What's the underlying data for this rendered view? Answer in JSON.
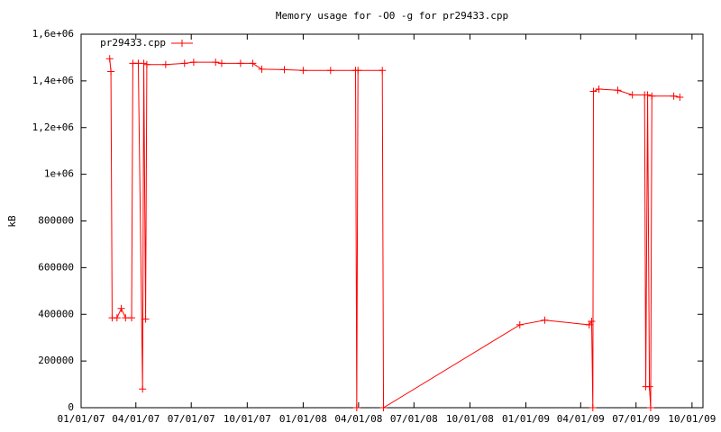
{
  "chart_data": {
    "type": "line",
    "title": "Memory usage for -O0 -g for pr29433.cpp",
    "y_label": "kB",
    "legend": "top-left",
    "series": [
      {
        "name": "pr29433.cpp",
        "color": "#ff0000",
        "x": [
          "2007-02-17",
          "2007-02-19",
          "2007-02-21",
          "2007-03-01",
          "2007-03-08",
          "2007-03-15",
          "2007-03-25",
          "2007-03-27",
          "2007-04-05",
          "2007-04-12",
          "2007-04-14",
          "2007-04-17",
          "2007-04-19",
          "2007-05-20",
          "2007-06-20",
          "2007-07-05",
          "2007-08-10",
          "2007-08-20",
          "2007-09-20",
          "2007-10-10",
          "2007-10-25",
          "2007-12-01",
          "2008-01-01",
          "2008-02-15",
          "2008-03-27",
          "2008-03-29",
          "2008-03-31",
          "2008-05-10",
          "2008-05-12",
          "2008-12-22",
          "2009-02-01",
          "2009-04-15",
          "2009-04-19",
          "2009-04-21",
          "2009-04-22",
          "2009-05-01",
          "2009-06-01",
          "2009-06-25",
          "2009-07-15",
          "2009-07-17",
          "2009-07-20",
          "2009-07-23",
          "2009-07-25",
          "2009-07-27",
          "2009-09-01",
          "2009-09-11"
        ],
        "values": [
          1495000,
          1440000,
          385000,
          385000,
          425000,
          385000,
          385000,
          1475000,
          1475000,
          80000,
          1475000,
          380000,
          1470000,
          1470000,
          1475000,
          1480000,
          1480000,
          1475000,
          1475000,
          1475000,
          1450000,
          1448000,
          1445000,
          1445000,
          1445000,
          0,
          1445000,
          1445000,
          0,
          355000,
          375000,
          355000,
          370000,
          0,
          1355000,
          1365000,
          1360000,
          1340000,
          1340000,
          90000,
          1340000,
          90000,
          0,
          1335000,
          1335000,
          1330000
        ]
      }
    ],
    "xlim": [
      "2007-01-01",
      "2009-10-19"
    ],
    "xticks": [
      {
        "value": "2007-01-01",
        "label": "01/01/07"
      },
      {
        "value": "2007-04-01",
        "label": "04/01/07"
      },
      {
        "value": "2007-07-01",
        "label": "07/01/07"
      },
      {
        "value": "2007-10-01",
        "label": "10/01/07"
      },
      {
        "value": "2008-01-01",
        "label": "01/01/08"
      },
      {
        "value": "2008-04-01",
        "label": "04/01/08"
      },
      {
        "value": "2008-07-01",
        "label": "07/01/08"
      },
      {
        "value": "2008-10-01",
        "label": "10/01/08"
      },
      {
        "value": "2009-01-01",
        "label": "01/01/09"
      },
      {
        "value": "2009-04-01",
        "label": "04/01/09"
      },
      {
        "value": "2009-07-01",
        "label": "07/01/09"
      },
      {
        "value": "2009-10-01",
        "label": "10/01/09"
      }
    ],
    "ylim": [
      0,
      1600000
    ],
    "yticks": [
      0,
      200000,
      400000,
      600000,
      800000,
      {
        "value": 1000000,
        "label": "1e+06"
      },
      {
        "value": 1200000,
        "label": "1,2e+06"
      },
      {
        "value": 1400000,
        "label": "1,4e+06"
      },
      {
        "value": 1600000,
        "label": "1,6e+06"
      }
    ]
  }
}
